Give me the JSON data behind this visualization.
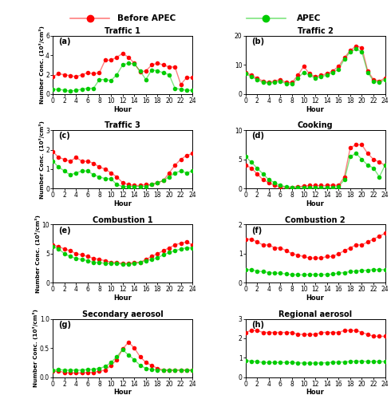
{
  "hours": [
    0,
    1,
    2,
    3,
    4,
    5,
    6,
    7,
    8,
    9,
    10,
    11,
    12,
    13,
    14,
    15,
    16,
    17,
    18,
    19,
    20,
    21,
    22,
    23,
    24
  ],
  "panels": [
    {
      "label": "(a)",
      "title": "Traffic 1",
      "ylim": [
        0,
        6
      ],
      "yticks": [
        0,
        2,
        4,
        6
      ],
      "show_ylabel": true,
      "before": [
        1.8,
        2.1,
        2.0,
        1.9,
        1.8,
        2.0,
        2.2,
        2.1,
        2.2,
        3.5,
        3.5,
        3.8,
        4.2,
        3.8,
        3.2,
        2.3,
        2.4,
        3.0,
        3.2,
        3.0,
        2.8,
        2.8,
        1.0,
        1.7,
        1.7
      ],
      "apec": [
        0.5,
        0.5,
        0.4,
        0.3,
        0.4,
        0.5,
        0.6,
        0.6,
        1.5,
        1.5,
        1.4,
        2.0,
        3.0,
        3.2,
        3.1,
        2.4,
        1.5,
        2.5,
        2.4,
        2.2,
        2.0,
        0.6,
        0.5,
        0.4,
        0.4
      ]
    },
    {
      "label": "(b)",
      "title": "Traffic 2",
      "ylim": [
        0,
        20
      ],
      "yticks": [
        0,
        10,
        20
      ],
      "show_ylabel": false,
      "before": [
        7.5,
        6.5,
        5.5,
        4.5,
        4.0,
        4.5,
        5.0,
        4.0,
        4.0,
        6.5,
        9.5,
        7.0,
        6.0,
        6.5,
        7.0,
        8.0,
        9.5,
        12.5,
        15.0,
        16.5,
        16.0,
        8.0,
        5.0,
        4.5,
        5.5
      ],
      "apec": [
        7.0,
        6.0,
        5.0,
        4.0,
        3.8,
        4.0,
        4.5,
        3.5,
        3.5,
        5.5,
        7.5,
        6.5,
        5.5,
        6.0,
        6.5,
        7.5,
        8.5,
        12.0,
        14.5,
        15.5,
        14.5,
        7.5,
        4.5,
        4.0,
        5.0
      ]
    },
    {
      "label": "(c)",
      "title": "Traffic 3",
      "ylim": [
        0,
        3
      ],
      "yticks": [
        0,
        1,
        2,
        3
      ],
      "show_ylabel": true,
      "before": [
        1.9,
        1.6,
        1.5,
        1.4,
        1.6,
        1.4,
        1.4,
        1.3,
        1.1,
        1.0,
        0.8,
        0.6,
        0.3,
        0.2,
        0.15,
        0.15,
        0.2,
        0.2,
        0.3,
        0.4,
        0.8,
        1.2,
        1.5,
        1.7,
        1.8
      ],
      "apec": [
        1.4,
        1.1,
        0.9,
        0.7,
        0.8,
        0.9,
        0.9,
        0.7,
        0.6,
        0.5,
        0.5,
        0.2,
        0.1,
        0.1,
        0.1,
        0.1,
        0.1,
        0.2,
        0.3,
        0.4,
        0.6,
        0.8,
        0.9,
        0.8,
        0.9
      ]
    },
    {
      "label": "(d)",
      "title": "Cooking",
      "ylim": [
        0,
        10
      ],
      "yticks": [
        0,
        5,
        10
      ],
      "show_ylabel": false,
      "before": [
        4.0,
        3.5,
        2.5,
        1.5,
        1.0,
        0.5,
        0.3,
        0.2,
        0.2,
        0.3,
        0.4,
        0.5,
        0.5,
        0.5,
        0.5,
        0.6,
        0.5,
        2.0,
        7.0,
        7.5,
        7.5,
        6.0,
        5.0,
        4.5,
        4.0
      ],
      "apec": [
        5.5,
        4.5,
        3.5,
        2.5,
        1.5,
        1.0,
        0.5,
        0.3,
        0.2,
        0.2,
        0.2,
        0.2,
        0.2,
        0.2,
        0.2,
        0.2,
        0.3,
        1.5,
        5.5,
        6.0,
        5.0,
        4.0,
        3.5,
        2.0,
        4.0
      ]
    },
    {
      "label": "(e)",
      "title": "Combustion 1",
      "ylim": [
        0,
        10
      ],
      "yticks": [
        0,
        5,
        10
      ],
      "show_ylabel": true,
      "before": [
        6.5,
        6.2,
        5.8,
        5.5,
        5.0,
        4.8,
        4.5,
        4.2,
        4.0,
        3.8,
        3.5,
        3.5,
        3.3,
        3.3,
        3.5,
        3.5,
        4.0,
        4.5,
        5.0,
        5.5,
        6.0,
        6.5,
        6.8,
        7.0,
        6.5
      ],
      "apec": [
        6.2,
        5.8,
        5.0,
        4.5,
        4.2,
        4.0,
        3.8,
        3.5,
        3.5,
        3.3,
        3.3,
        3.3,
        3.2,
        3.2,
        3.3,
        3.5,
        3.8,
        4.0,
        4.3,
        4.8,
        5.2,
        5.5,
        5.8,
        6.0,
        6.0
      ]
    },
    {
      "label": "(f)",
      "title": "Combustion 2",
      "ylim": [
        0,
        2
      ],
      "yticks": [
        0,
        1,
        2
      ],
      "show_ylabel": false,
      "before": [
        1.5,
        1.5,
        1.4,
        1.3,
        1.3,
        1.2,
        1.2,
        1.1,
        1.0,
        0.95,
        0.9,
        0.85,
        0.85,
        0.85,
        0.9,
        0.9,
        1.0,
        1.1,
        1.2,
        1.3,
        1.3,
        1.4,
        1.5,
        1.6,
        1.7
      ],
      "apec": [
        0.45,
        0.45,
        0.4,
        0.38,
        0.35,
        0.33,
        0.33,
        0.3,
        0.28,
        0.27,
        0.27,
        0.28,
        0.28,
        0.28,
        0.28,
        0.3,
        0.33,
        0.35,
        0.38,
        0.4,
        0.42,
        0.43,
        0.45,
        0.45,
        0.45
      ]
    },
    {
      "label": "(g)",
      "title": "Secondary aerosol",
      "ylim": [
        0,
        1.0
      ],
      "yticks": [
        0.0,
        0.5,
        1.0
      ],
      "show_ylabel": true,
      "before": [
        0.1,
        0.1,
        0.08,
        0.07,
        0.07,
        0.07,
        0.08,
        0.08,
        0.1,
        0.12,
        0.2,
        0.3,
        0.48,
        0.6,
        0.5,
        0.35,
        0.25,
        0.2,
        0.15,
        0.12,
        0.12,
        0.12,
        0.12,
        0.12,
        0.12
      ],
      "apec": [
        0.12,
        0.13,
        0.12,
        0.12,
        0.12,
        0.12,
        0.13,
        0.13,
        0.15,
        0.18,
        0.25,
        0.35,
        0.47,
        0.38,
        0.3,
        0.2,
        0.15,
        0.13,
        0.12,
        0.12,
        0.12,
        0.12,
        0.12,
        0.12,
        0.12
      ]
    },
    {
      "label": "(h)",
      "title": "Regional aerosol",
      "ylim": [
        0,
        3
      ],
      "yticks": [
        0,
        1,
        2,
        3
      ],
      "show_ylabel": false,
      "before": [
        2.3,
        2.4,
        2.4,
        2.3,
        2.3,
        2.3,
        2.3,
        2.3,
        2.3,
        2.2,
        2.2,
        2.2,
        2.2,
        2.3,
        2.3,
        2.3,
        2.3,
        2.4,
        2.4,
        2.4,
        2.3,
        2.2,
        2.1,
        2.1,
        2.1
      ],
      "apec": [
        0.85,
        0.82,
        0.8,
        0.75,
        0.75,
        0.75,
        0.75,
        0.75,
        0.75,
        0.73,
        0.72,
        0.72,
        0.72,
        0.73,
        0.74,
        0.76,
        0.77,
        0.78,
        0.8,
        0.82,
        0.82,
        0.8,
        0.8,
        0.8,
        0.8
      ]
    }
  ],
  "ylabel_text": "Number Conc. (10³/cm³)",
  "before_color": "#FF0000",
  "apec_color": "#00CC00",
  "line_alpha": 0.5,
  "marker_size": 4,
  "legend_before": "Before APEC",
  "legend_apec": "APEC",
  "fig_width": 4.9,
  "fig_height": 5.0,
  "dpi": 100
}
